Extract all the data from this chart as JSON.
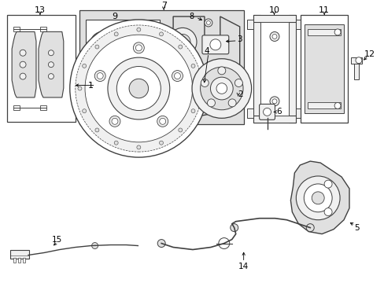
{
  "bg_color": "#ffffff",
  "line_color": "#404040",
  "gray_fill": "#e0e0e0",
  "light_fill": "#f0f0f0",
  "figsize": [
    4.89,
    3.6
  ],
  "dpi": 100
}
